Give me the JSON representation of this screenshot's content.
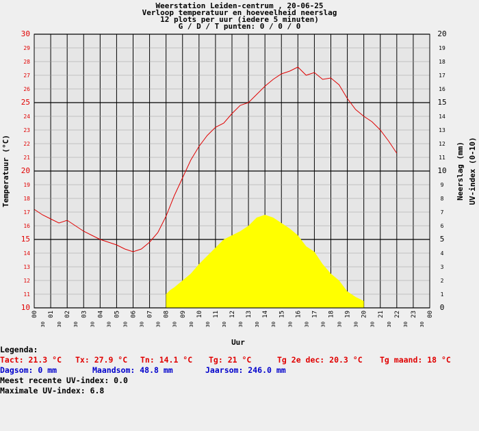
{
  "header": {
    "line1": "Weerstation Leiden-centrum , 20-06-25",
    "line2": "Verloop temperatuur en hoeveelheid neerslag",
    "line3": "12 plots per uur (iedere 5 minuten)",
    "line4": "G / D / T punten: 0 / 0 / 0"
  },
  "legend": {
    "heading": "Legenda:",
    "tact": "Tact: 21.3 °C",
    "tx": "Tx: 27.9 °C",
    "tn": "Tn: 14.1 °C",
    "tg": "Tg: 21 °C",
    "tg2e": "Tg 2e dec: 20.3 °C",
    "tgmaand": "Tg maand: 18 °C",
    "dagsom": "Dagsom: 0 mm",
    "maandsom": "Maandsom: 48.8 mm",
    "jaarsom": "Jaarsom: 246.0 mm",
    "uv_recent": "Meest recente UV-index: 0.0",
    "uv_max": "Maximale UV-index: 6.8"
  },
  "colors": {
    "background": "#efefef",
    "plot_bg": "#e6e6e6",
    "temperature": "#e00000",
    "uv_fill": "#ffff00",
    "blue_text": "#0000cc"
  },
  "chart_data": {
    "type": "line",
    "title": "Verloop temperatuur en hoeveelheid neerslag",
    "xlabel": "Uur",
    "ylabel_left": "Temperatuur (°C)",
    "ylabel_right_1": "Neerslag (mm)",
    "ylabel_right_2": "UV-index (0-10)",
    "xlim": [
      0,
      24
    ],
    "ylim_left": [
      10,
      30
    ],
    "ylim_right": [
      0,
      20
    ],
    "x_hour_labels": [
      "00",
      "01",
      "02",
      "03",
      "04",
      "05",
      "06",
      "07",
      "08",
      "09",
      "10",
      "11",
      "12",
      "13",
      "14",
      "15",
      "16",
      "17",
      "18",
      "19",
      "20",
      "21",
      "22",
      "23",
      "00"
    ],
    "x_half_label": "30",
    "y_left_ticks": [
      "10",
      "11",
      "12",
      "13",
      "14",
      "15",
      "16",
      "17",
      "18",
      "19",
      "20",
      "21",
      "22",
      "23",
      "24",
      "25",
      "26",
      "27",
      "28",
      "29",
      "30"
    ],
    "y_right_ticks": [
      "0",
      "1",
      "2",
      "3",
      "4",
      "5",
      "6",
      "7",
      "8",
      "9",
      "10",
      "11",
      "12",
      "13",
      "14",
      "15",
      "16",
      "17",
      "18",
      "19",
      "20"
    ],
    "grid": true,
    "series": [
      {
        "name": "Temperatuur",
        "color": "#e00000",
        "x": [
          0,
          0.5,
          1,
          1.5,
          2,
          2.5,
          3,
          3.5,
          4,
          4.5,
          5,
          5.5,
          6,
          6.5,
          7,
          7.5,
          8,
          8.5,
          9,
          9.5,
          10,
          10.5,
          11,
          11.5,
          12,
          12.5,
          13,
          13.5,
          14,
          14.5,
          15,
          15.5,
          16,
          16.5,
          17,
          17.5,
          18,
          18.5,
          19,
          19.5,
          20,
          20.5,
          21,
          21.5,
          22
        ],
        "values": [
          17.2,
          16.8,
          16.5,
          16.2,
          16.4,
          16.0,
          15.6,
          15.3,
          15.0,
          14.8,
          14.6,
          14.3,
          14.1,
          14.3,
          14.8,
          15.5,
          16.7,
          18.2,
          19.5,
          20.8,
          21.8,
          22.6,
          23.2,
          23.5,
          24.2,
          24.8,
          25.0,
          25.6,
          26.2,
          26.7,
          27.1,
          27.3,
          27.6,
          27.0,
          27.2,
          26.7,
          26.8,
          26.3,
          25.3,
          24.5,
          24.0,
          23.6,
          23.0,
          22.2,
          21.3
        ]
      },
      {
        "name": "UV-index",
        "color": "#ffff00",
        "x": [
          8,
          8.25,
          8.5,
          9,
          9.5,
          10,
          10.5,
          11,
          11.5,
          12,
          12.5,
          13,
          13.5,
          14,
          14.5,
          15,
          15.5,
          16,
          16.5,
          17,
          17.5,
          18,
          18.5,
          19,
          19.5,
          20
        ],
        "values": [
          1.0,
          1.3,
          1.5,
          2.0,
          2.5,
          3.2,
          3.8,
          4.4,
          5.0,
          5.3,
          5.6,
          6.0,
          6.6,
          6.8,
          6.6,
          6.2,
          5.8,
          5.3,
          4.5,
          4.1,
          3.2,
          2.5,
          2.0,
          1.2,
          0.8,
          0.5
        ]
      }
    ]
  }
}
